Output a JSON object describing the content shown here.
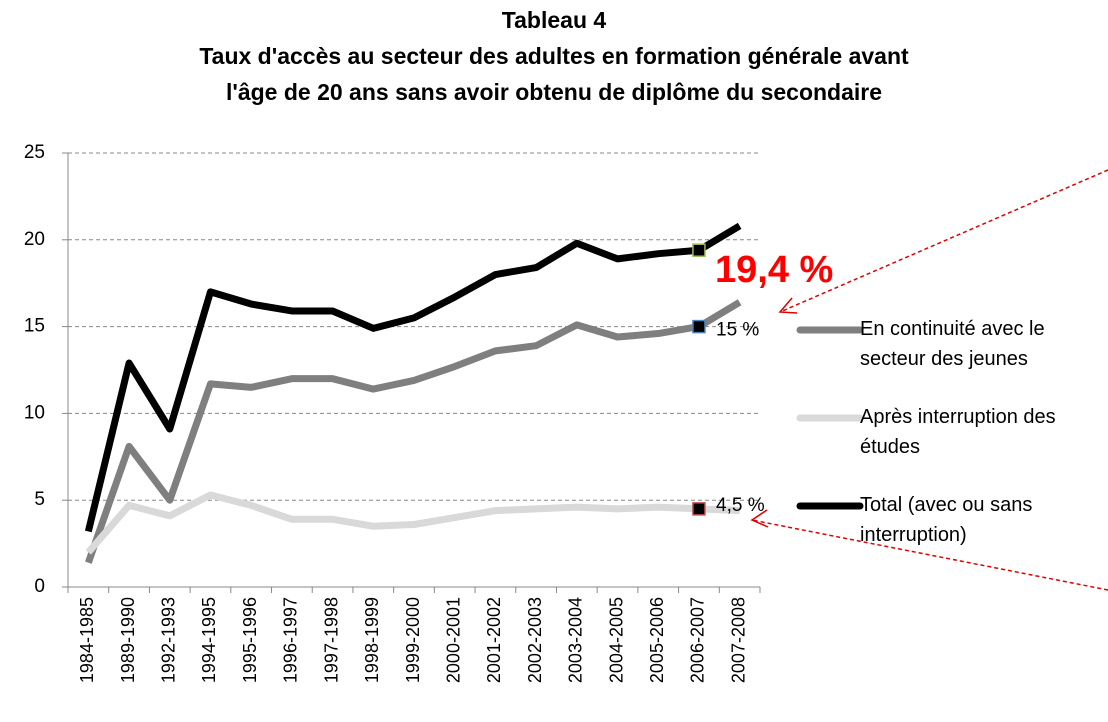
{
  "chart_data": {
    "type": "line",
    "title": [
      "Tableau 4",
      "Taux d'accès au secteur des adultes en formation générale avant",
      "l'âge de 20 ans sans avoir obtenu de diplôme du secondaire"
    ],
    "categories": [
      "1984-1985",
      "1989-1990",
      "1992-1993",
      "1994-1995",
      "1995-1996",
      "1996-1997",
      "1997-1998",
      "1998-1999",
      "1999-2000",
      "2000-2001",
      "2001-2002",
      "2002-2003",
      "2003-2004",
      "2004-2005",
      "2005-2006",
      "2006-2007",
      "2007-2008"
    ],
    "series": [
      {
        "name": "En continuité avec le secteur des jeunes",
        "color": "#7f7f7f",
        "values": [
          1.4,
          8.1,
          5.0,
          11.7,
          11.5,
          12.0,
          12.0,
          11.4,
          11.9,
          12.7,
          13.6,
          13.9,
          15.1,
          14.4,
          14.6,
          15.0,
          16.4
        ]
      },
      {
        "name": "Après interruption des études",
        "color": "#d9d9d9",
        "values": [
          2.0,
          4.7,
          4.1,
          5.3,
          4.7,
          3.9,
          3.9,
          3.5,
          3.6,
          4.0,
          4.4,
          4.5,
          4.6,
          4.5,
          4.6,
          4.5,
          4.4
        ]
      },
      {
        "name": "Total (avec ou sans interruption)",
        "color": "#000000",
        "values": [
          3.2,
          12.9,
          9.1,
          17.0,
          16.3,
          15.9,
          15.9,
          14.9,
          15.5,
          16.7,
          18.0,
          18.4,
          19.8,
          18.9,
          19.2,
          19.4,
          20.8
        ]
      }
    ],
    "annotations": [
      "19,4 %",
      "15 %",
      "4,5 %"
    ],
    "ylim": [
      0,
      25
    ],
    "yticks": [
      0,
      5,
      10,
      15,
      20,
      25
    ],
    "grid": true,
    "legend": "right"
  }
}
